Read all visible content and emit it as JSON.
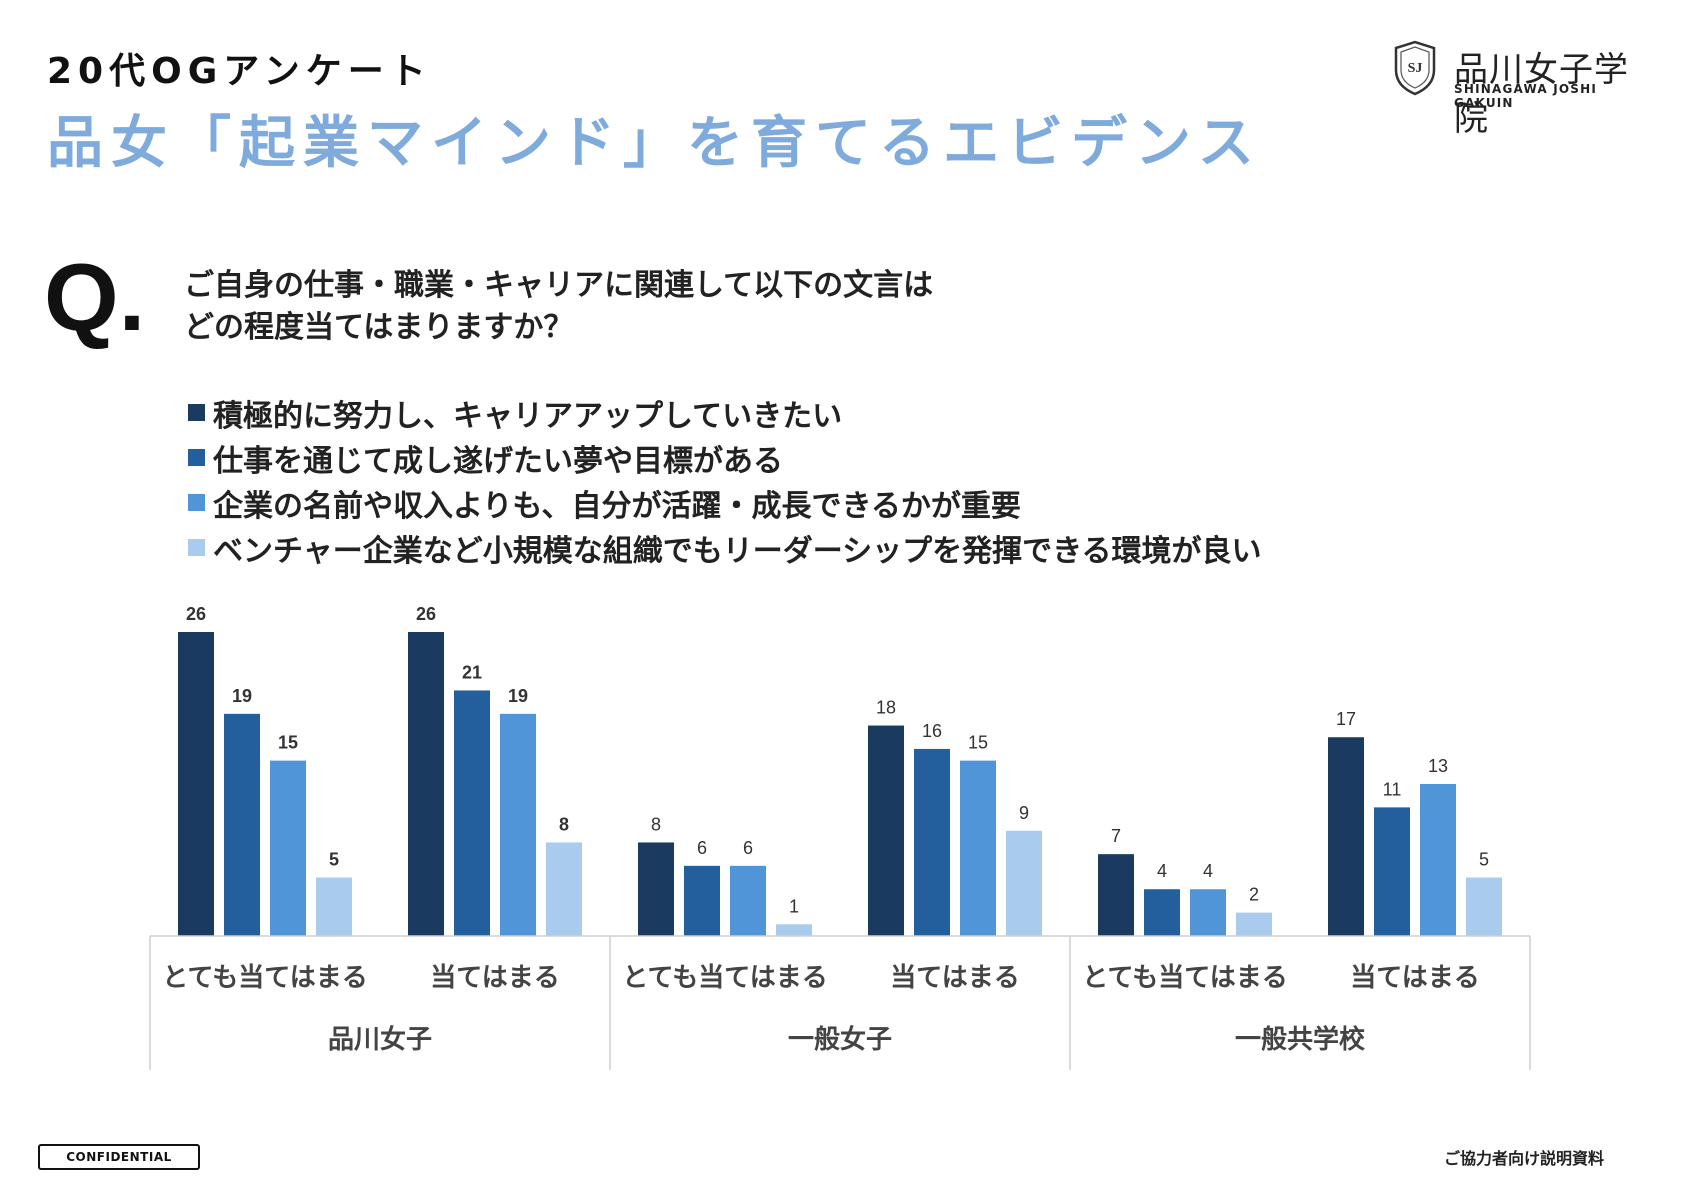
{
  "header": {
    "subtitle": "20代OGアンケート",
    "title": "品女「起業マインド」を育てるエビデンス"
  },
  "logo": {
    "crest_text": "SJ",
    "name": "品川女子学院",
    "roman": "SHINAGAWA JOSHI GAKUIN"
  },
  "question": {
    "mark": "Q.",
    "line1": "ご自身の仕事・職業・キャリアに関連して以下の文言は",
    "line2": "どの程度当てはまりますか？"
  },
  "chart_data": {
    "type": "bar",
    "ylim": [
      0,
      28
    ],
    "grid": false,
    "legend_placement": "top-left",
    "series": [
      {
        "name": "積極的に努力し、キャリアアップしていきたい",
        "color": "#1a3a5f",
        "values": [
          26,
          26,
          8,
          18,
          7,
          17
        ]
      },
      {
        "name": "仕事を通じて成し遂げたい夢や目標がある",
        "color": "#235e9d",
        "values": [
          19,
          21,
          6,
          16,
          4,
          11
        ]
      },
      {
        "name": "企業の名前や収入よりも、自分が活躍・成長できるかが重要",
        "color": "#4f95d8",
        "values": [
          15,
          19,
          6,
          15,
          4,
          13
        ]
      },
      {
        "name": "ベンチャー企業など小規模な組織でもリーダーシップを発揮できる環境が良い",
        "color": "#a8cbee",
        "values": [
          5,
          8,
          1,
          9,
          2,
          5
        ]
      }
    ],
    "categories": [
      "とても当てはまる",
      "当てはまる",
      "とても当てはまる",
      "当てはまる",
      "とても当てはまる",
      "当てはまる"
    ],
    "groups": [
      "品川女子",
      "一般女子",
      "一般共学校"
    ],
    "bold_labels_group": 0
  },
  "footer": {
    "confidential": "CONFIDENTIAL",
    "note": "ご協力者向け説明資料"
  }
}
